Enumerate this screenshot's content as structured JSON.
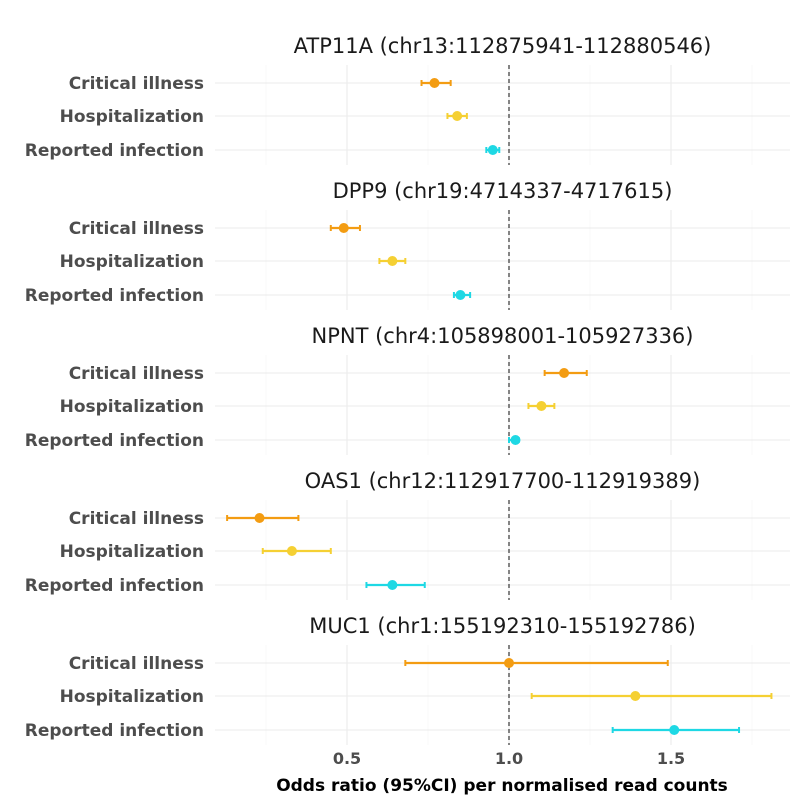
{
  "chart_data": {
    "type": "forest",
    "xlabel": "Odds ratio (95%CI) per normalised read counts",
    "xlim": [
      0.09,
      1.81
    ],
    "xticks": [
      0.5,
      1.0,
      1.5
    ],
    "xtick_labels": [
      "0.5",
      "1.0",
      "1.5"
    ],
    "reference_line": 1.0,
    "grid": true,
    "outcomes": [
      "Critical illness",
      "Hospitalization",
      "Reported infection"
    ],
    "outcome_colors": {
      "Critical illness": "#F39C12",
      "Hospitalization": "#F5D033",
      "Reported infection": "#1ED8E4"
    },
    "panels": [
      {
        "title": "ATP11A (chr13:112875941-112880546)",
        "rows": [
          {
            "outcome": "Critical illness",
            "or": 0.77,
            "lo": 0.73,
            "hi": 0.82
          },
          {
            "outcome": "Hospitalization",
            "or": 0.84,
            "lo": 0.81,
            "hi": 0.87
          },
          {
            "outcome": "Reported infection",
            "or": 0.95,
            "lo": 0.93,
            "hi": 0.97
          }
        ]
      },
      {
        "title": "DPP9 (chr19:4714337-4717615)",
        "rows": [
          {
            "outcome": "Critical illness",
            "or": 0.49,
            "lo": 0.45,
            "hi": 0.54
          },
          {
            "outcome": "Hospitalization",
            "or": 0.64,
            "lo": 0.6,
            "hi": 0.68
          },
          {
            "outcome": "Reported infection",
            "or": 0.85,
            "lo": 0.83,
            "hi": 0.88
          }
        ]
      },
      {
        "title": "NPNT (chr4:105898001-105927336)",
        "rows": [
          {
            "outcome": "Critical illness",
            "or": 1.17,
            "lo": 1.11,
            "hi": 1.24
          },
          {
            "outcome": "Hospitalization",
            "or": 1.1,
            "lo": 1.06,
            "hi": 1.14
          },
          {
            "outcome": "Reported infection",
            "or": 1.02,
            "lo": 1.0,
            "hi": 1.03
          }
        ]
      },
      {
        "title": "OAS1 (chr12:112917700-112919389)",
        "rows": [
          {
            "outcome": "Critical illness",
            "or": 0.23,
            "lo": 0.13,
            "hi": 0.35
          },
          {
            "outcome": "Hospitalization",
            "or": 0.33,
            "lo": 0.24,
            "hi": 0.45
          },
          {
            "outcome": "Reported infection",
            "or": 0.64,
            "lo": 0.56,
            "hi": 0.74
          }
        ]
      },
      {
        "title": "MUC1 (chr1:155192310-155192786)",
        "rows": [
          {
            "outcome": "Critical illness",
            "or": 1.0,
            "lo": 0.68,
            "hi": 1.49
          },
          {
            "outcome": "Hospitalization",
            "or": 1.39,
            "lo": 1.07,
            "hi": 1.81
          },
          {
            "outcome": "Reported infection",
            "or": 1.51,
            "lo": 1.32,
            "hi": 1.71
          }
        ]
      }
    ]
  }
}
